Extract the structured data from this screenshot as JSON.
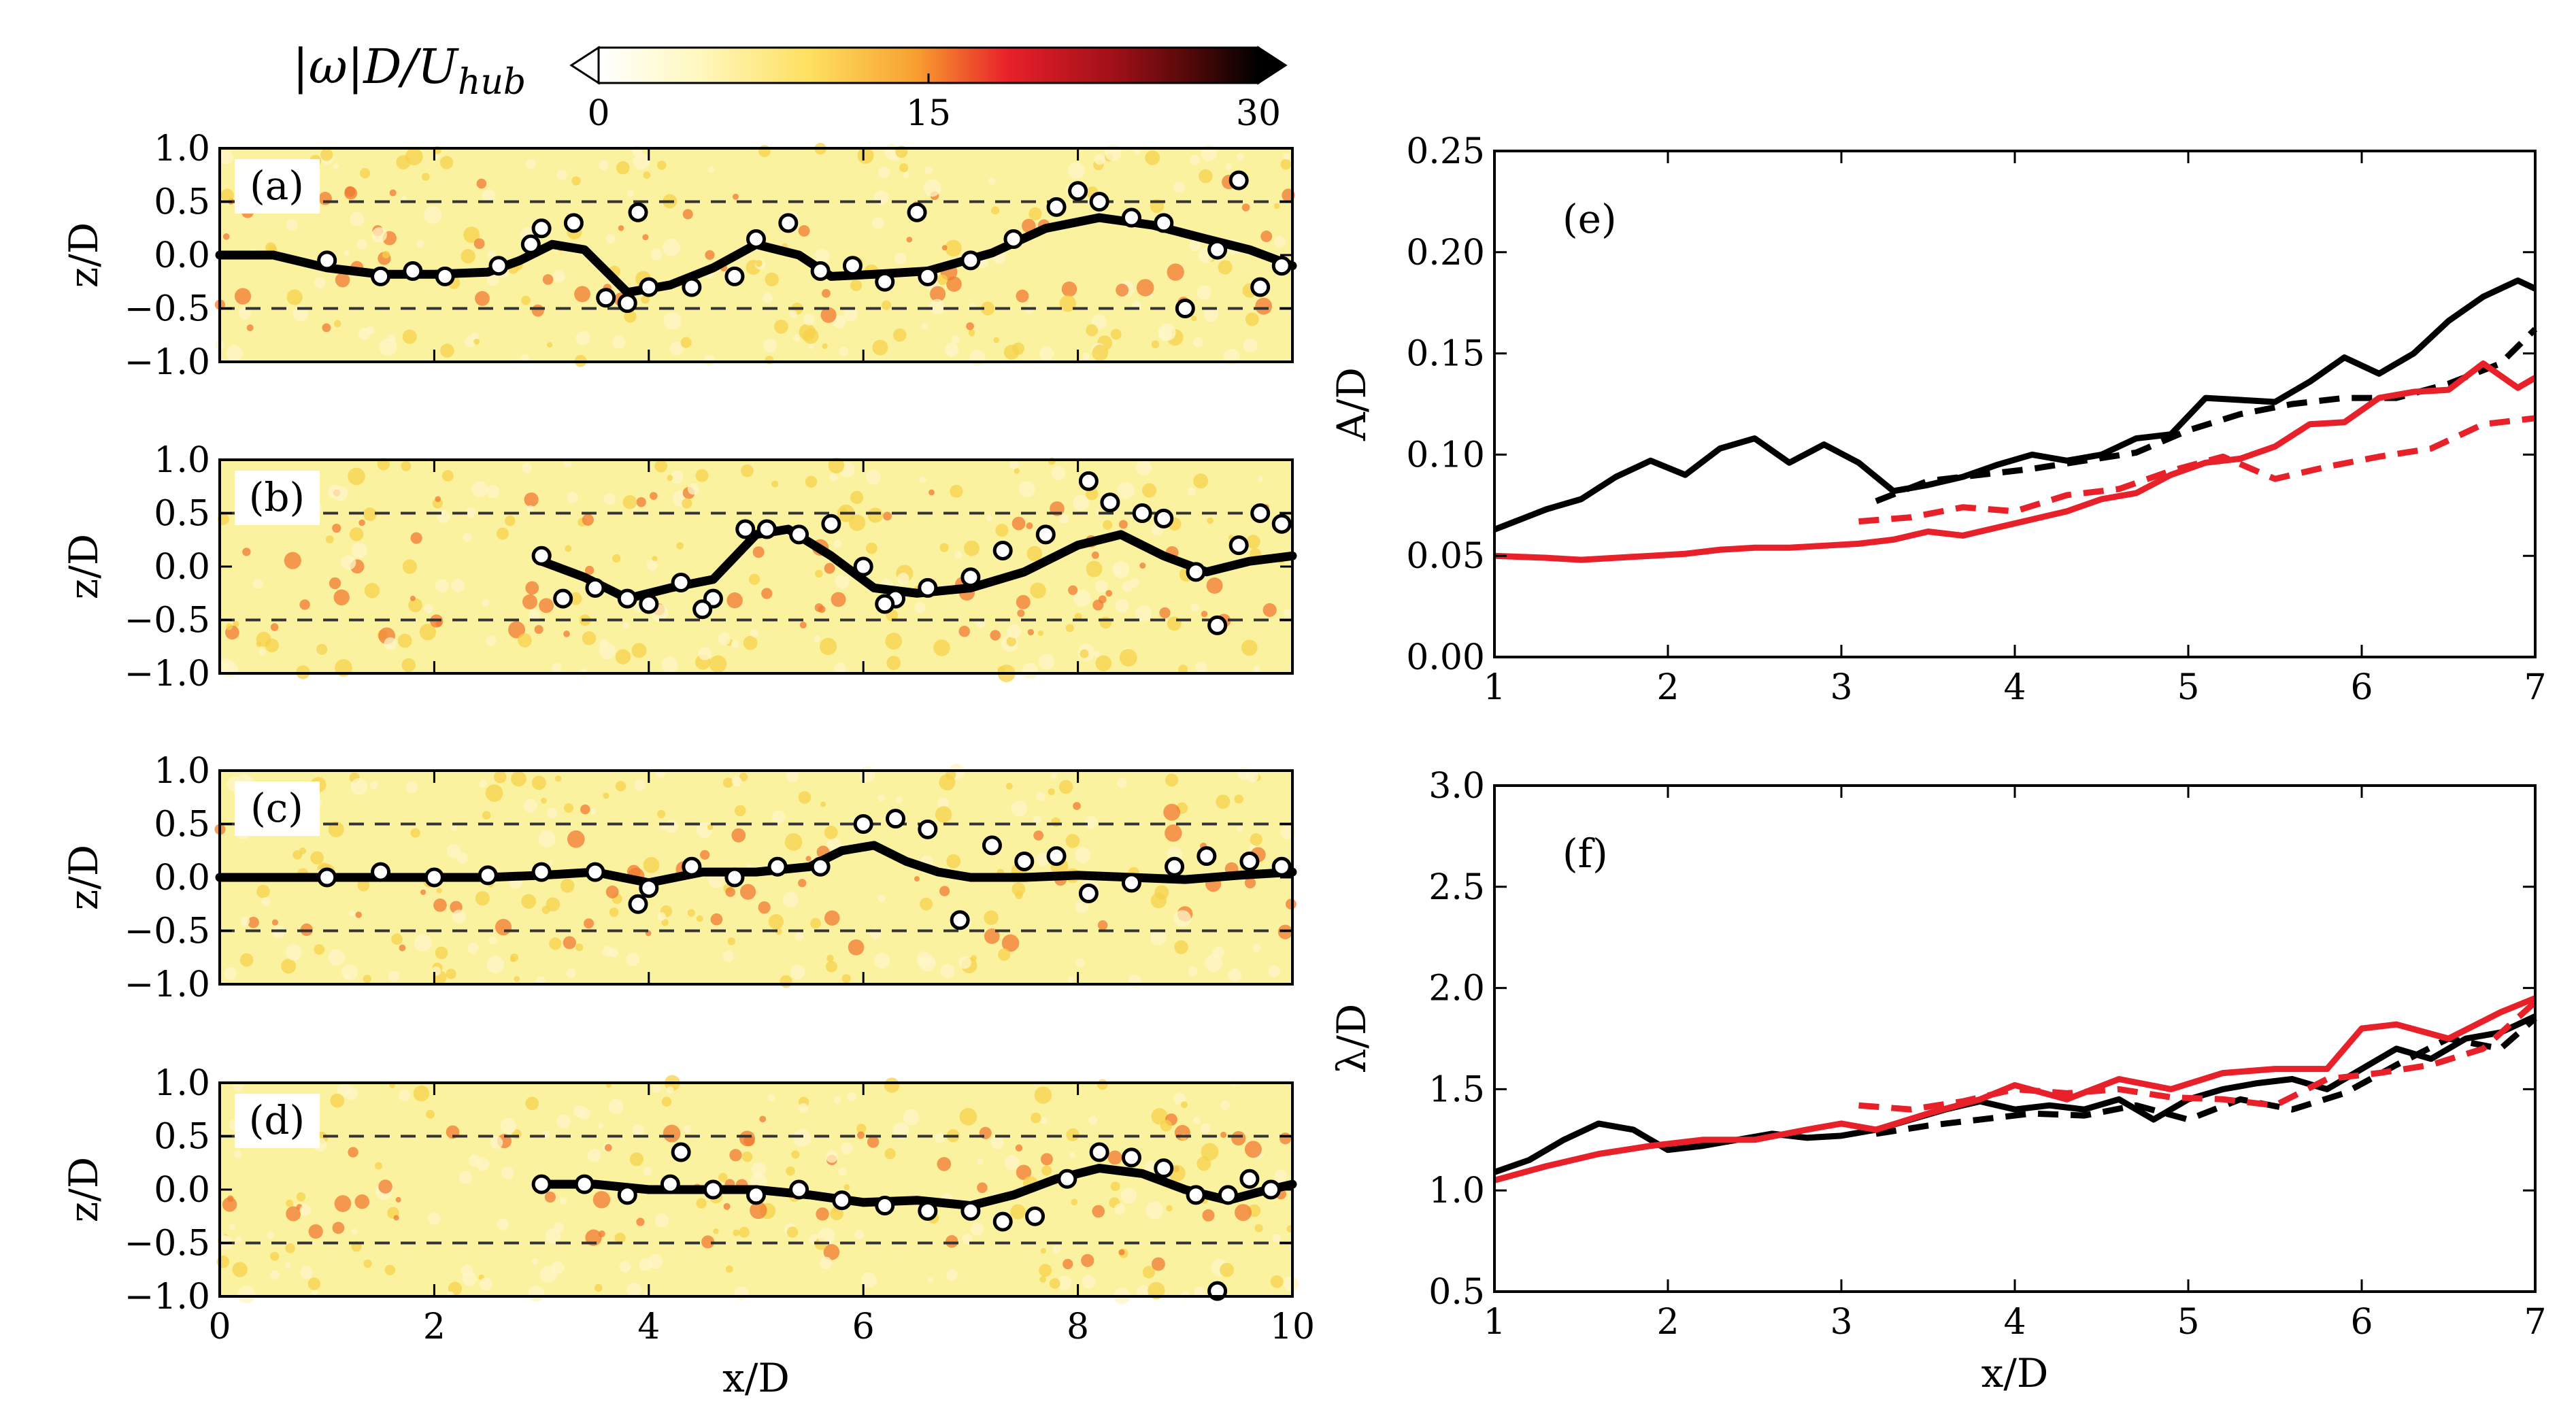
{
  "colors": {
    "black": "#000000",
    "red": "#e8202a",
    "field": "#fbf2a0",
    "dashed": "#333333"
  },
  "colorbar": {
    "label": "|ω|D/U_hub",
    "label_parts": [
      "|ω|D/U",
      "hub"
    ],
    "ticks": [
      0,
      15,
      30
    ],
    "tick_labels": [
      "0",
      "15",
      "30"
    ],
    "range": [
      0,
      30
    ],
    "colormap": "hot_r"
  },
  "chart_data": [
    {
      "id": "a",
      "panel_label": "(a)",
      "type": "scatter",
      "xlabel": "",
      "ylabel": "z/D",
      "xlim": [
        0,
        10
      ],
      "ylim": [
        -1.0,
        1.0
      ],
      "yticks": [
        1.0,
        0.5,
        0.0,
        -0.5,
        -1.0
      ],
      "ytick_labels": [
        "1.0",
        "0.5",
        "0.0",
        "−0.5",
        "−1.0"
      ],
      "xticks": [],
      "xtick_labels": [],
      "reference_lines": [
        0.5,
        -0.5
      ],
      "center_line": {
        "x": [
          0,
          0.5,
          1,
          1.5,
          2,
          2.5,
          2.8,
          3.1,
          3.4,
          3.8,
          4.2,
          4.6,
          5,
          5.4,
          5.7,
          6.1,
          6.6,
          7.2,
          7.7,
          8.2,
          8.7,
          9.2,
          9.6,
          10
        ],
        "y": [
          0,
          0,
          -0.12,
          -0.18,
          -0.18,
          -0.16,
          -0.05,
          0.1,
          0.05,
          -0.35,
          -0.28,
          -0.12,
          0.1,
          0.0,
          -0.2,
          -0.18,
          -0.15,
          0.02,
          0.25,
          0.35,
          0.28,
          0.15,
          0.05,
          -0.1
        ]
      },
      "particles": {
        "x": [
          1.0,
          1.5,
          2.1,
          2.6,
          2.9,
          3.0,
          3.3,
          3.6,
          3.8,
          4.0,
          4.4,
          4.8,
          5.0,
          5.3,
          5.6,
          5.9,
          6.2,
          6.6,
          7.0,
          7.4,
          7.8,
          8.0,
          8.2,
          8.5,
          8.8,
          9.0,
          9.3,
          9.5,
          9.7,
          9.9,
          6.5,
          1.8,
          3.9
        ],
        "y": [
          -0.05,
          -0.2,
          -0.2,
          -0.1,
          0.1,
          0.25,
          0.3,
          -0.4,
          -0.45,
          -0.3,
          -0.3,
          -0.2,
          0.15,
          0.3,
          -0.15,
          -0.1,
          -0.25,
          -0.2,
          -0.05,
          0.15,
          0.45,
          0.6,
          0.5,
          0.35,
          0.3,
          -0.5,
          0.05,
          0.7,
          -0.3,
          -0.1,
          0.4,
          -0.15,
          0.4
        ]
      }
    },
    {
      "id": "b",
      "panel_label": "(b)",
      "type": "scatter",
      "xlabel": "",
      "ylabel": "z/D",
      "xlim": [
        0,
        10
      ],
      "ylim": [
        -1.0,
        1.0
      ],
      "yticks": [
        1.0,
        0.5,
        0.0,
        -0.5,
        -1.0
      ],
      "ytick_labels": [
        "1.0",
        "0.5",
        "0.0",
        "−0.5",
        "−1.0"
      ],
      "xticks": [],
      "xtick_labels": [],
      "reference_lines": [
        0.5,
        -0.5
      ],
      "center_line": {
        "x": [
          3,
          3.4,
          3.8,
          4.2,
          4.6,
          5.0,
          5.3,
          5.7,
          6.1,
          6.5,
          7.0,
          7.5,
          8.0,
          8.4,
          8.8,
          9.2,
          9.6,
          10
        ],
        "y": [
          0.05,
          -0.1,
          -0.3,
          -0.2,
          -0.12,
          0.3,
          0.35,
          0.1,
          -0.2,
          -0.25,
          -0.2,
          -0.05,
          0.2,
          0.3,
          0.1,
          -0.05,
          0.05,
          0.1
        ]
      },
      "particles": {
        "x": [
          3.0,
          3.2,
          3.5,
          3.8,
          4.0,
          4.3,
          4.6,
          4.9,
          5.1,
          5.4,
          5.7,
          6.0,
          6.3,
          6.6,
          7.0,
          7.3,
          7.7,
          8.1,
          8.3,
          8.6,
          8.8,
          9.1,
          9.3,
          9.5,
          9.7,
          9.9,
          6.2,
          4.5
        ],
        "y": [
          0.1,
          -0.3,
          -0.2,
          -0.3,
          -0.35,
          -0.15,
          -0.3,
          0.35,
          0.35,
          0.3,
          0.4,
          0.0,
          -0.3,
          -0.2,
          -0.1,
          0.15,
          0.3,
          0.8,
          0.6,
          0.5,
          0.45,
          -0.05,
          -0.55,
          0.2,
          0.5,
          0.4,
          -0.35,
          -0.4
        ]
      }
    },
    {
      "id": "c",
      "panel_label": "(c)",
      "type": "scatter",
      "xlabel": "",
      "ylabel": "z/D",
      "xlim": [
        0,
        10
      ],
      "ylim": [
        -1.0,
        1.0
      ],
      "yticks": [
        1.0,
        0.5,
        0.0,
        -0.5,
        -1.0
      ],
      "ytick_labels": [
        "1.0",
        "0.5",
        "0.0",
        "−0.5",
        "−1.0"
      ],
      "xticks": [],
      "xtick_labels": [],
      "reference_lines": [
        0.5,
        -0.5
      ],
      "center_line": {
        "x": [
          0,
          0.5,
          1,
          1.5,
          2,
          2.5,
          3,
          3.5,
          4,
          4.5,
          5,
          5.5,
          5.8,
          6.1,
          6.4,
          6.7,
          7.0,
          7.5,
          8,
          8.5,
          9,
          9.5,
          10
        ],
        "y": [
          0,
          0,
          0,
          0,
          0,
          0,
          0.02,
          0.05,
          -0.05,
          0.05,
          0.05,
          0.1,
          0.25,
          0.3,
          0.15,
          0.05,
          0,
          0.0,
          0.02,
          0.0,
          -0.02,
          0.02,
          0.05
        ]
      },
      "particles": {
        "x": [
          1.0,
          1.5,
          2.0,
          2.5,
          3.0,
          3.5,
          4.0,
          4.4,
          4.8,
          5.2,
          5.6,
          6.0,
          6.3,
          6.6,
          6.9,
          7.2,
          7.5,
          7.8,
          8.1,
          8.5,
          8.9,
          9.2,
          9.6,
          9.9,
          3.9
        ],
        "y": [
          0.0,
          0.05,
          0.0,
          0.02,
          0.05,
          0.05,
          -0.1,
          0.1,
          0.0,
          0.1,
          0.1,
          0.5,
          0.55,
          0.45,
          -0.4,
          0.3,
          0.15,
          0.2,
          -0.15,
          -0.05,
          0.1,
          0.2,
          0.15,
          0.1,
          -0.25
        ]
      }
    },
    {
      "id": "d",
      "panel_label": "(d)",
      "type": "scatter",
      "xlabel": "x/D",
      "ylabel": "z/D",
      "xlim": [
        0,
        10
      ],
      "ylim": [
        -1.0,
        1.0
      ],
      "yticks": [
        1.0,
        0.5,
        0.0,
        -0.5,
        -1.0
      ],
      "ytick_labels": [
        "1.0",
        "0.5",
        "0.0",
        "−0.5",
        "−1.0"
      ],
      "xticks": [
        0,
        2,
        4,
        6,
        8,
        10
      ],
      "xtick_labels": [
        "0",
        "2",
        "4",
        "6",
        "8",
        "10"
      ],
      "reference_lines": [
        0.5,
        -0.5
      ],
      "center_line": {
        "x": [
          3,
          3.5,
          4,
          4.5,
          5,
          5.5,
          6,
          6.5,
          7,
          7.4,
          7.8,
          8.2,
          8.6,
          9.0,
          9.4,
          9.7,
          10
        ],
        "y": [
          0.05,
          0.05,
          0.0,
          0.0,
          0.0,
          -0.05,
          -0.12,
          -0.1,
          -0.15,
          -0.05,
          0.1,
          0.2,
          0.15,
          0.0,
          -0.1,
          -0.02,
          0.05
        ]
      },
      "particles": {
        "x": [
          3.0,
          3.4,
          3.8,
          4.2,
          4.6,
          5.0,
          5.4,
          5.8,
          6.2,
          6.6,
          7.0,
          7.3,
          7.6,
          7.9,
          8.2,
          8.5,
          8.8,
          9.1,
          9.4,
          9.6,
          9.8,
          4.3,
          9.3
        ],
        "y": [
          0.05,
          0.05,
          -0.05,
          0.05,
          0.0,
          -0.05,
          0.0,
          -0.1,
          -0.15,
          -0.2,
          -0.2,
          -0.3,
          -0.25,
          0.1,
          0.35,
          0.3,
          0.2,
          -0.05,
          -0.05,
          0.1,
          0.0,
          0.35,
          -0.95
        ]
      }
    },
    {
      "id": "e",
      "panel_label": "(e)",
      "type": "line",
      "xlabel": "",
      "ylabel": "A/D",
      "xlim": [
        1,
        7
      ],
      "ylim": [
        0.0,
        0.25
      ],
      "xticks": [
        1,
        2,
        3,
        4,
        5,
        6,
        7
      ],
      "xtick_labels": [
        "1",
        "2",
        "3",
        "4",
        "5",
        "6",
        "7"
      ],
      "yticks": [
        0.0,
        0.05,
        0.1,
        0.15,
        0.2,
        0.25
      ],
      "ytick_labels": [
        "0.00",
        "0.05",
        "0.10",
        "0.15",
        "0.20",
        "0.25"
      ],
      "series": [
        {
          "name": "black solid",
          "color": "#000000",
          "dash": "solid",
          "x": [
            1.0,
            1.15,
            1.3,
            1.5,
            1.7,
            1.9,
            2.1,
            2.3,
            2.5,
            2.7,
            2.9,
            3.1,
            3.3,
            3.5,
            3.7,
            3.9,
            4.1,
            4.3,
            4.5,
            4.7,
            4.9,
            5.1,
            5.3,
            5.5,
            5.7,
            5.9,
            6.1,
            6.3,
            6.5,
            6.7,
            6.9,
            7.0
          ],
          "y": [
            0.063,
            0.068,
            0.073,
            0.078,
            0.089,
            0.097,
            0.09,
            0.103,
            0.108,
            0.096,
            0.105,
            0.096,
            0.082,
            0.085,
            0.089,
            0.095,
            0.1,
            0.097,
            0.1,
            0.108,
            0.11,
            0.128,
            0.127,
            0.126,
            0.136,
            0.148,
            0.14,
            0.15,
            0.166,
            0.178,
            0.186,
            0.182
          ]
        },
        {
          "name": "black dashed",
          "color": "#000000",
          "dash": "dashed",
          "x": [
            3.2,
            3.5,
            3.8,
            4.1,
            4.4,
            4.7,
            5.0,
            5.3,
            5.6,
            5.9,
            6.2,
            6.5,
            6.8,
            7.0
          ],
          "y": [
            0.077,
            0.087,
            0.09,
            0.093,
            0.097,
            0.101,
            0.112,
            0.12,
            0.125,
            0.128,
            0.128,
            0.135,
            0.145,
            0.162
          ]
        },
        {
          "name": "red solid",
          "color": "#e8202a",
          "dash": "solid",
          "x": [
            1.0,
            1.3,
            1.5,
            1.7,
            1.9,
            2.1,
            2.3,
            2.5,
            2.7,
            2.9,
            3.1,
            3.3,
            3.5,
            3.7,
            3.9,
            4.1,
            4.3,
            4.5,
            4.7,
            4.9,
            5.1,
            5.3,
            5.5,
            5.7,
            5.9,
            6.1,
            6.3,
            6.5,
            6.7,
            6.9,
            7.0
          ],
          "y": [
            0.05,
            0.049,
            0.048,
            0.049,
            0.05,
            0.051,
            0.053,
            0.054,
            0.054,
            0.055,
            0.056,
            0.058,
            0.062,
            0.06,
            0.064,
            0.068,
            0.072,
            0.078,
            0.081,
            0.09,
            0.096,
            0.098,
            0.104,
            0.115,
            0.116,
            0.128,
            0.131,
            0.132,
            0.145,
            0.133,
            0.138
          ]
        },
        {
          "name": "red dashed",
          "color": "#e8202a",
          "dash": "dashed",
          "x": [
            3.1,
            3.4,
            3.7,
            4.0,
            4.3,
            4.6,
            4.9,
            5.2,
            5.5,
            5.8,
            6.1,
            6.4,
            6.7,
            7.0
          ],
          "y": [
            0.067,
            0.069,
            0.074,
            0.072,
            0.08,
            0.083,
            0.092,
            0.099,
            0.088,
            0.094,
            0.099,
            0.103,
            0.115,
            0.118
          ]
        }
      ]
    },
    {
      "id": "f",
      "panel_label": "(f)",
      "type": "line",
      "xlabel": "x/D",
      "ylabel": "λ/D",
      "xlim": [
        1,
        7
      ],
      "ylim": [
        0.5,
        3.0
      ],
      "xticks": [
        1,
        2,
        3,
        4,
        5,
        6,
        7
      ],
      "xtick_labels": [
        "1",
        "2",
        "3",
        "4",
        "5",
        "6",
        "7"
      ],
      "yticks": [
        0.5,
        1.0,
        1.5,
        2.0,
        2.5,
        3.0
      ],
      "ytick_labels": [
        "0.5",
        "1.0",
        "1.5",
        "2.0",
        "2.5",
        "3.0"
      ],
      "series": [
        {
          "name": "black solid",
          "color": "#000000",
          "dash": "solid",
          "x": [
            1.0,
            1.2,
            1.4,
            1.6,
            1.8,
            2.0,
            2.2,
            2.4,
            2.6,
            2.8,
            3.0,
            3.2,
            3.4,
            3.6,
            3.8,
            4.0,
            4.2,
            4.4,
            4.6,
            4.8,
            5.0,
            5.2,
            5.4,
            5.6,
            5.8,
            6.0,
            6.2,
            6.4,
            6.6,
            6.8,
            7.0
          ],
          "y": [
            1.09,
            1.15,
            1.25,
            1.33,
            1.3,
            1.2,
            1.22,
            1.25,
            1.28,
            1.26,
            1.27,
            1.3,
            1.35,
            1.4,
            1.44,
            1.4,
            1.42,
            1.4,
            1.45,
            1.35,
            1.45,
            1.5,
            1.53,
            1.55,
            1.5,
            1.6,
            1.7,
            1.65,
            1.75,
            1.78,
            1.86
          ]
        },
        {
          "name": "black dashed",
          "color": "#000000",
          "dash": "dashed",
          "x": [
            3.2,
            3.5,
            3.8,
            4.1,
            4.4,
            4.7,
            5.0,
            5.3,
            5.6,
            5.9,
            6.2,
            6.5,
            6.8,
            7.0
          ],
          "y": [
            1.28,
            1.32,
            1.35,
            1.38,
            1.37,
            1.42,
            1.35,
            1.45,
            1.4,
            1.48,
            1.62,
            1.75,
            1.7,
            1.85
          ]
        },
        {
          "name": "red solid",
          "color": "#e8202a",
          "dash": "solid",
          "x": [
            1.0,
            1.3,
            1.6,
            1.9,
            2.2,
            2.5,
            2.8,
            3.0,
            3.2,
            3.5,
            3.8,
            4.0,
            4.3,
            4.6,
            4.9,
            5.2,
            5.5,
            5.8,
            6.0,
            6.2,
            6.5,
            6.8,
            7.0
          ],
          "y": [
            1.05,
            1.12,
            1.18,
            1.22,
            1.25,
            1.25,
            1.3,
            1.33,
            1.3,
            1.38,
            1.45,
            1.52,
            1.45,
            1.55,
            1.5,
            1.58,
            1.6,
            1.6,
            1.8,
            1.82,
            1.75,
            1.88,
            1.95
          ]
        },
        {
          "name": "red dashed",
          "color": "#e8202a",
          "dash": "dashed",
          "x": [
            3.1,
            3.4,
            3.7,
            4.0,
            4.3,
            4.6,
            4.9,
            5.2,
            5.5,
            5.8,
            6.1,
            6.4,
            6.7,
            7.0
          ],
          "y": [
            1.42,
            1.4,
            1.44,
            1.5,
            1.48,
            1.5,
            1.46,
            1.45,
            1.42,
            1.55,
            1.58,
            1.62,
            1.7,
            1.93
          ]
        }
      ]
    }
  ]
}
